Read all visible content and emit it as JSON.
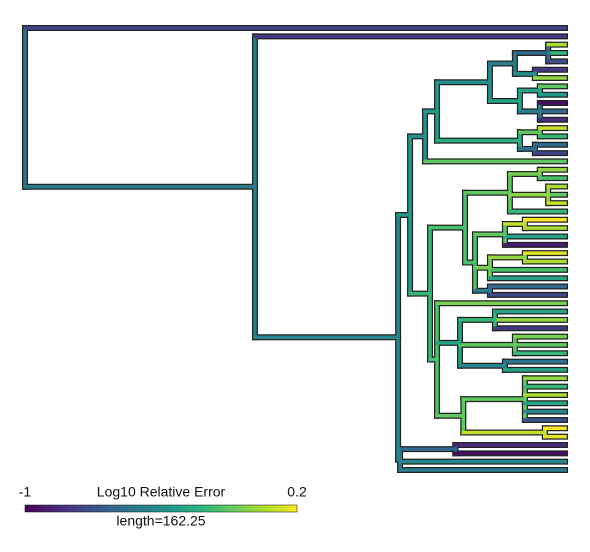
{
  "chart_data": {
    "type": "tree",
    "colormap": "viridis",
    "xlim": [
      0,
      162.25
    ],
    "tree": {
      "x": 0,
      "v": -0.55,
      "c": [
        {
          "v": -0.75
        },
        {
          "x": 69.1,
          "v": -0.5,
          "c": [
            {
              "v": -0.8
            },
            {
              "x": 112.1,
              "v": -0.45,
              "c": [
                {
                  "x": 115.7,
                  "v": -0.35,
                  "c": [
                    {
                      "x": 120.2,
                      "v": -0.4,
                      "c": [
                        {
                          "x": 123.8,
                          "v": -0.35,
                          "c": [
                            {
                              "x": 139.7,
                              "v": -0.4,
                              "c": [
                                {
                                  "x": 147.2,
                                  "v": -0.5,
                                  "c": [
                                    {
                                      "x": 157.2,
                                      "v": -0.6,
                                      "c": [
                                        {
                                          "v": 0.05
                                        },
                                        {
                                          "v": -0.2
                                        },
                                        {
                                          "v": -0.7
                                        }
                                      ]
                                    },
                                    {
                                      "x": 153.2,
                                      "v": -0.4,
                                      "c": [
                                        {
                                          "v": -0.8
                                        },
                                        {
                                          "v": 0.0
                                        }
                                      ]
                                    }
                                  ]
                                },
                                {
                                  "x": 148.7,
                                  "v": -0.3,
                                  "c": [
                                    {
                                      "x": 154.7,
                                      "v": -0.3,
                                      "c": [
                                        {
                                          "v": -0.1
                                        },
                                        {
                                          "v": -0.35
                                        }
                                      ]
                                    },
                                    {
                                      "x": 154.7,
                                      "v": -0.5,
                                      "c": [
                                        {
                                          "v": -0.95
                                        },
                                        {
                                          "v": -0.6
                                        },
                                        {
                                          "v": -0.85
                                        }
                                      ]
                                    }
                                  ]
                                }
                              ]
                            },
                            {
                              "x": 148.7,
                              "v": -0.25,
                              "c": [
                                {
                                  "x": 154.7,
                                  "v": -0.1,
                                  "c": [
                                    {
                                      "v": 0.1
                                    },
                                    {
                                      "v": -0.2
                                    }
                                  ]
                                },
                                {
                                  "x": 153.2,
                                  "v": -0.55,
                                  "c": [
                                    {
                                      "v": -0.6
                                    },
                                    {
                                      "v": -0.75
                                    }
                                  ]
                                }
                              ]
                            }
                          ]
                        },
                        {
                          "v": -0.1
                        }
                      ]
                    },
                    {
                      "x": 121.7,
                      "v": -0.2,
                      "c": [
                        {
                          "x": 132.2,
                          "v": -0.15,
                          "c": [
                            {
                              "x": 145.7,
                              "v": -0.1,
                              "c": [
                                {
                                  "x": 154.7,
                                  "v": -0.05,
                                  "c": [
                                    {
                                      "v": 0.0
                                    },
                                    {
                                      "v": -0.15
                                    }
                                  ]
                                },
                                {
                                  "x": 157.2,
                                  "v": 0.0,
                                  "c": [
                                    {
                                      "v": 0.05
                                    },
                                    {
                                      "v": -0.1
                                    },
                                    {
                                      "v": 0.1
                                    }
                                  ]
                                },
                                {
                                  "v": -0.2
                                }
                              ]
                            },
                            {
                              "x": 135.2,
                              "v": -0.15,
                              "c": [
                                {
                                  "x": 144.2,
                                  "v": -0.1,
                                  "c": [
                                    {
                                      "x": 150.2,
                                      "v": 0.1,
                                      "c": [
                                        {
                                          "v": 0.2
                                        },
                                        {
                                          "v": 0.05
                                        }
                                      ]
                                    },
                                    {
                                      "v": -0.3
                                    },
                                    {
                                      "v": -0.9
                                    }
                                  ]
                                },
                                {
                                  "x": 139.7,
                                  "v": -0.05,
                                  "c": [
                                    {
                                      "x": 150.2,
                                      "v": 0.0,
                                      "c": [
                                        {
                                          "v": 0.15
                                        },
                                        {
                                          "v": 0.05
                                        }
                                      ]
                                    },
                                    {
                                      "v": -0.15
                                    },
                                    {
                                      "v": -0.3
                                    }
                                  ]
                                },
                                {
                                  "x": 139.7,
                                  "v": -0.5,
                                  "c": [
                                    {
                                      "v": -0.6
                                    },
                                    {
                                      "v": -0.75
                                    }
                                  ]
                                }
                              ]
                            }
                          ]
                        },
                        {
                          "x": 123.8,
                          "v": -0.15,
                          "c": [
                            {
                              "v": -0.05
                            },
                            {
                              "x": 130.7,
                              "v": -0.3,
                              "c": [
                                {
                                  "x": 141.2,
                                  "v": -0.2,
                                  "c": [
                                    {
                                      "v": -0.3
                                    },
                                    {
                                      "v": 0.0
                                    },
                                    {
                                      "v": -0.8
                                    }
                                  ]
                                },
                                {
                                  "x": 147.2,
                                  "v": -0.1,
                                  "c": [
                                    {
                                      "v": -0.05
                                    },
                                    {
                                      "v": -0.1
                                    },
                                    {
                                      "v": -0.2
                                    }
                                  ]
                                },
                                {
                                  "x": 144.2,
                                  "v": -0.45,
                                  "c": [
                                    {
                                      "v": -0.55
                                    },
                                    {
                                      "v": -0.3
                                    }
                                  ]
                                }
                              ]
                            },
                            {
                              "x": 131.7,
                              "v": -0.1,
                              "c": [
                                {
                                  "x": 150.2,
                                  "v": -0.1,
                                  "c": [
                                    {
                                      "v": 0.0
                                    },
                                    {
                                      "v": -0.2
                                    },
                                    {
                                      "v": 0.05
                                    },
                                    {
                                      "v": -0.3
                                    },
                                    {
                                      "v": -0.45
                                    },
                                    {
                                      "v": -0.7
                                    }
                                  ]
                                },
                                {
                                  "x": 156.2,
                                  "v": 0.1,
                                  "c": [
                                    {
                                      "v": 0.2
                                    },
                                    {
                                      "v": 0.15
                                    }
                                  ]
                                }
                              ]
                            }
                          ]
                        }
                      ]
                    }
                  ]
                },
                {
                  "x": 112.7,
                  "v": -0.5,
                  "c": [
                    {
                      "x": 129.3,
                      "v": -0.6,
                      "c": [
                        {
                          "v": -0.85
                        },
                        {
                          "v": -0.95
                        }
                      ]
                    },
                    {
                      "v": -0.45
                    },
                    {
                      "v": -0.5
                    }
                  ]
                }
              ]
            }
          ]
        }
      ]
    },
    "colorbar": {
      "title": "Log10 Relative Error",
      "lim": [
        -1,
        0.2
      ],
      "ticks": [
        -1,
        0.2
      ],
      "length": "length=162.25"
    }
  }
}
